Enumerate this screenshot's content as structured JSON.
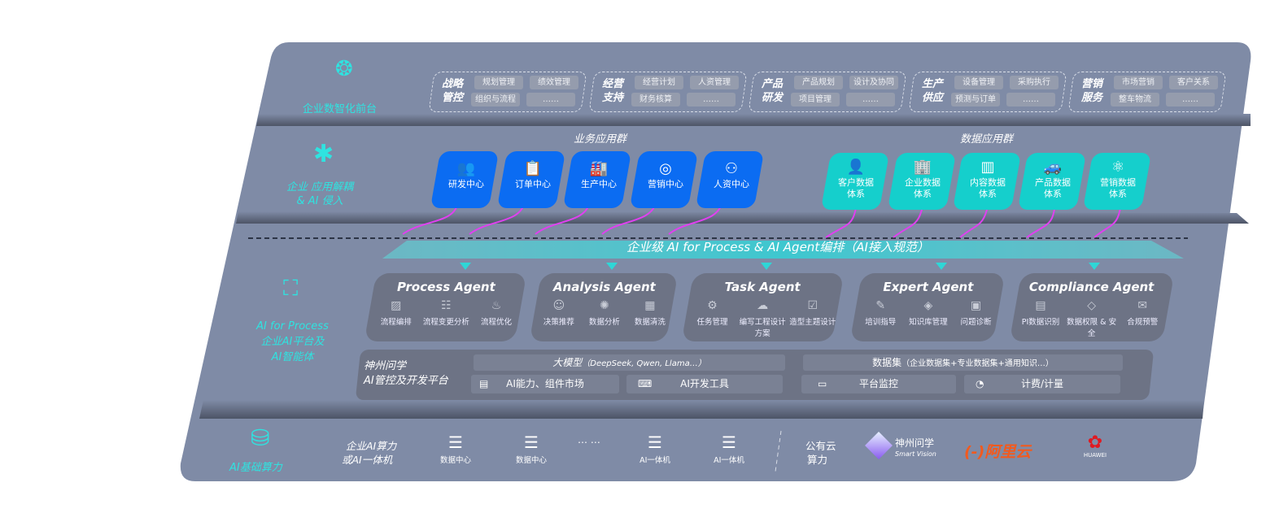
{
  "colors": {
    "panel": "#7f8ba6",
    "accent_cyan": "#2fe3e0",
    "business_app": "#0b6cf2",
    "data_app": "#15cfcc",
    "agent_box": "#6d7385",
    "arrow": "#e040f0"
  },
  "layer1": {
    "label": "企业数智化前台",
    "icon": "brain-icon",
    "groups": [
      {
        "title": "战略管控",
        "items": [
          "规划管理",
          "绩效管理",
          "组织与流程",
          "……"
        ]
      },
      {
        "title": "经营支持",
        "items": [
          "经营计划",
          "人资管理",
          "财务核算",
          "……"
        ]
      },
      {
        "title": "产品研发",
        "items": [
          "产品规划",
          "设计及协同",
          "项目管理",
          "……"
        ]
      },
      {
        "title": "生产供应",
        "items": [
          "设备管理",
          "采购执行",
          "预测与订单",
          "……"
        ]
      },
      {
        "title": "营销服务",
        "items": [
          "市场营销",
          "客户关系",
          "整车物流",
          "……"
        ]
      }
    ]
  },
  "layer2": {
    "label_line1": "企业 应用解耦",
    "label_line2": "& AI 侵入",
    "icon": "molecule-icon",
    "business_title": "业务应用群",
    "business_apps": [
      {
        "label": "研发中心",
        "icon": "people-icon"
      },
      {
        "label": "订单中心",
        "icon": "clipboard-icon"
      },
      {
        "label": "生产中心",
        "icon": "factory-icon"
      },
      {
        "label": "营销中心",
        "icon": "target-icon"
      },
      {
        "label": "人资中心",
        "icon": "person-icon"
      }
    ],
    "data_title": "数据应用群",
    "data_apps": [
      {
        "label1": "客户数据",
        "label2": "体系",
        "icon": "user-icon"
      },
      {
        "label1": "企业数据",
        "label2": "体系",
        "icon": "building-icon"
      },
      {
        "label1": "内容数据",
        "label2": "体系",
        "icon": "books-icon"
      },
      {
        "label1": "产品数据",
        "label2": "体系",
        "icon": "car-icon"
      },
      {
        "label1": "营销数据",
        "label2": "体系",
        "icon": "atom-icon"
      }
    ]
  },
  "layer3": {
    "banner": "企业级 AI for Process & AI Agent编排（AI接入规范）",
    "label_line1": "AI for Process",
    "label_line2": "企业AI平台及",
    "label_line3": "AI智能体",
    "icon": "face-scan-icon",
    "agents": [
      {
        "title": "Process Agent",
        "items": [
          "流程编排",
          "流程变更分析",
          "流程优化"
        ]
      },
      {
        "title": "Analysis Agent",
        "items": [
          "决策推荐",
          "数据分析",
          "数据清洗"
        ]
      },
      {
        "title": "Task Agent",
        "items": [
          "任务管理",
          "编写工程设计方案",
          "造型主题设计"
        ]
      },
      {
        "title": "Expert Agent",
        "items": [
          "培训指导",
          "知识库管理",
          "问题诊断"
        ]
      },
      {
        "title": "Compliance Agent",
        "items": [
          "PI数据识别",
          "数据权限 & 安全",
          "合规预警"
        ]
      }
    ],
    "platform": {
      "name_line1": "神州问学",
      "name_line2": "AI管控及开发平台",
      "llm": "大模型",
      "llm_note": "（DeepSeek, Qwen, Llama…）",
      "dataset": "数据集",
      "dataset_note": "（企业数据集+专业数据集+通用知识…）",
      "tools": [
        "AI能力、组件市场",
        "AI开发工具",
        "平台监控",
        "计费/计量"
      ]
    }
  },
  "layer4": {
    "label": "AI基础算力",
    "icon": "database-icon",
    "private_label_line1": "企业AI算力",
    "private_label_line2": "或AI一体机",
    "servers": [
      "数据中心",
      "数据中心",
      "AI一体机",
      "AI一体机"
    ],
    "ellipsis": "… …",
    "public_label_line1": "公有云",
    "public_label_line2": "算力",
    "vendors": [
      {
        "name": "神州问学",
        "sub": "Smart Vision"
      },
      {
        "name": "阿里云",
        "mark": "(-)"
      },
      {
        "name": "HUAWEI"
      }
    ]
  }
}
